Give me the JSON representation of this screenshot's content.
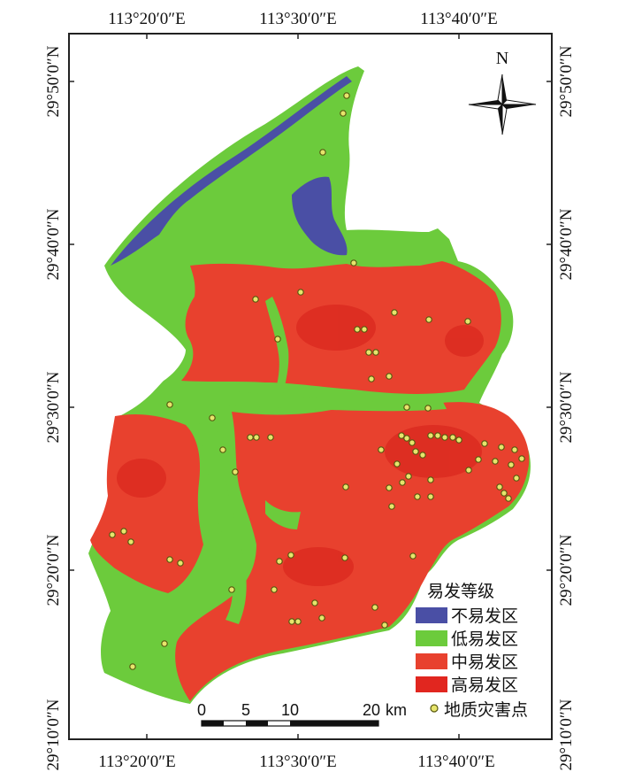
{
  "map": {
    "longitude_labels": [
      "113°20′0″E",
      "113°30′0″E",
      "113°40′0″E"
    ],
    "latitude_labels": [
      "29°50′0″N",
      "29°40′0″N",
      "29°30′0″N",
      "29°20′0″N",
      "29°10′0″N"
    ],
    "north_label": "N",
    "legend": {
      "title": "易发等级",
      "items": [
        {
          "label": "不易发区",
          "color": "#4a4fa5"
        },
        {
          "label": "低易发区",
          "color": "#6ccb3c"
        },
        {
          "label": "中易发区",
          "color": "#e8412e"
        },
        {
          "label": "高易发区",
          "color": "#e1261f"
        }
      ],
      "hazard_label": "地质灾害点",
      "hazard_color": "#e7e56c"
    },
    "scale_bar": {
      "ticks": [
        "0",
        "5",
        "10",
        "20"
      ],
      "unit": "km"
    }
  }
}
